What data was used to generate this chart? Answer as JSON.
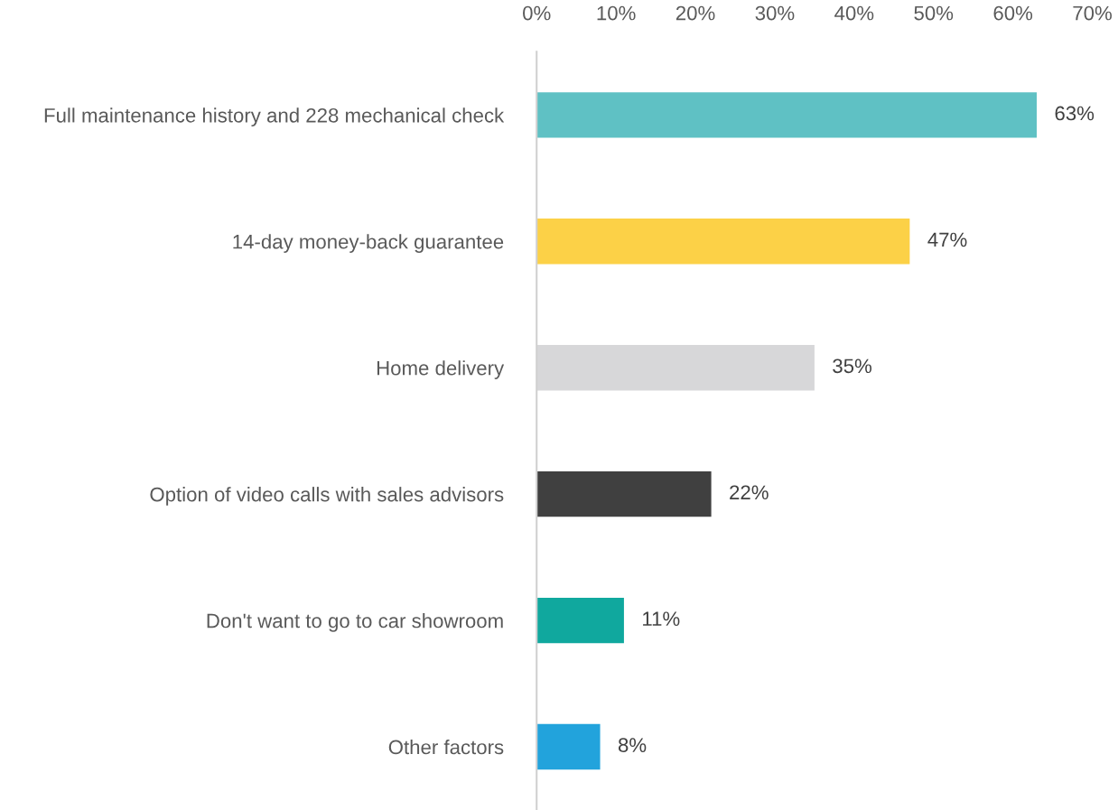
{
  "chart_data": {
    "type": "bar",
    "orientation": "horizontal",
    "categories": [
      "Full maintenance history and 228 mechanical check",
      "14-day money-back guarantee",
      "Home delivery",
      "Option of video calls with sales advisors",
      "Don't want to go to car showroom",
      "Other factors"
    ],
    "values": [
      63,
      47,
      35,
      22,
      11,
      8
    ],
    "colors": [
      "#5fc1c4",
      "#fcd147",
      "#d7d7d9",
      "#404040",
      "#10a89e",
      "#22a3dc"
    ],
    "value_labels": [
      "63%",
      "47%",
      "35%",
      "22%",
      "11%",
      "8%"
    ],
    "xlim": [
      0,
      70
    ],
    "xticks": [
      {
        "value": 0,
        "label": "0%"
      },
      {
        "value": 10,
        "label": "10%"
      },
      {
        "value": 20,
        "label": "20%"
      },
      {
        "value": 30,
        "label": "30%"
      },
      {
        "value": 40,
        "label": "40%"
      },
      {
        "value": 50,
        "label": "50%"
      },
      {
        "value": 60,
        "label": "60%"
      },
      {
        "value": 70,
        "label": "70%"
      }
    ],
    "grid": false,
    "legend": false
  }
}
